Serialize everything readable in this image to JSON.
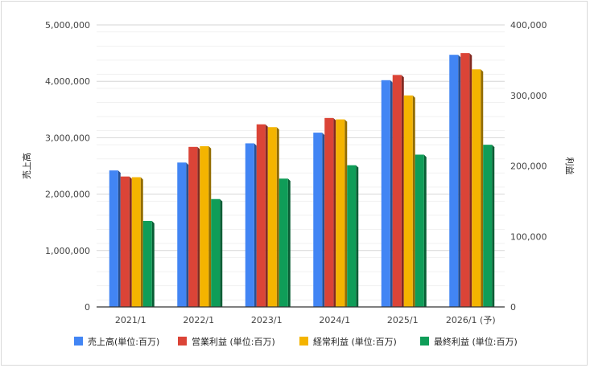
{
  "chart_data": {
    "type": "bar",
    "categories": [
      "2021/1",
      "2022/1",
      "2023/1",
      "2024/1",
      "2025/1",
      "2026/1 (予)"
    ],
    "series": [
      {
        "name": "売上高(単位:百万)",
        "axis": "left",
        "color": "#4285f4",
        "values": [
          2420000,
          2560000,
          2900000,
          3090000,
          4020000,
          4470000
        ]
      },
      {
        "name": "営業利益 (単位:百万)",
        "axis": "right",
        "color": "#db4437",
        "values": [
          185000,
          227000,
          259000,
          268000,
          329000,
          360000
        ]
      },
      {
        "name": "経常利益 (単位:百万)",
        "axis": "right",
        "color": "#f4b400",
        "values": [
          184000,
          228000,
          255000,
          266000,
          300000,
          337000
        ]
      },
      {
        "name": "最終利益 (単位:百万)",
        "axis": "right",
        "color": "#0f9d58",
        "values": [
          122000,
          153000,
          182000,
          201000,
          216000,
          230000
        ]
      }
    ],
    "ylabel": "売上高",
    "y2label": "利益",
    "ylim": [
      0,
      5000000
    ],
    "y2lim": [
      0,
      400000
    ],
    "yticks": [
      "0",
      "1,000,000",
      "2,000,000",
      "3,000,000",
      "4,000,000",
      "5,000,000"
    ],
    "y2ticks": [
      "0",
      "100,000",
      "200,000",
      "300,000",
      "400,000"
    ],
    "grid": true,
    "legend_position": "bottom"
  }
}
